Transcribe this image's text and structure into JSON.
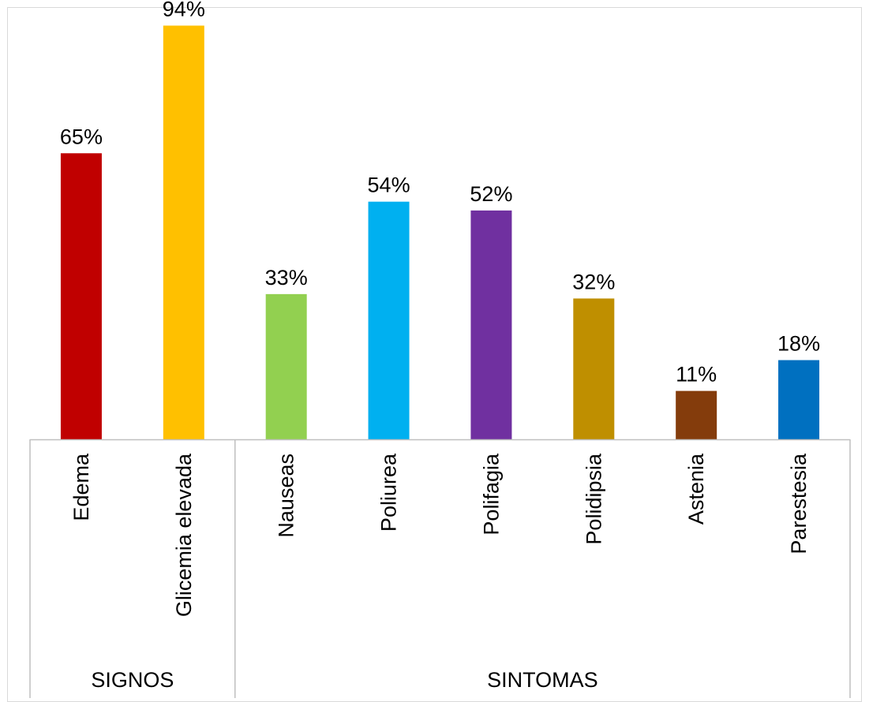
{
  "chart_data": {
    "type": "bar",
    "groups": [
      {
        "name": "SIGNOS",
        "categories": [
          "Edema",
          "Glicemia elevada"
        ]
      },
      {
        "name": "SINTOMAS",
        "categories": [
          "Nauseas",
          "Poliurea",
          "Polifagia",
          "Polidipsia",
          "Astenia",
          "Parestesia"
        ]
      }
    ],
    "categories": [
      "Edema",
      "Glicemia elevada",
      "Nauseas",
      "Poliurea",
      "Polifagia",
      "Polidipsia",
      "Astenia",
      "Parestesia"
    ],
    "values": [
      65,
      94,
      33,
      54,
      52,
      32,
      11,
      18
    ],
    "value_labels": [
      "65%",
      "94%",
      "33%",
      "54%",
      "52%",
      "32%",
      "11%",
      "18%"
    ],
    "colors": [
      "#c00000",
      "#ffc000",
      "#92d050",
      "#00b0f0",
      "#7030a0",
      "#bf8f00",
      "#843c0c",
      "#0070c0"
    ],
    "ylim": [
      0,
      100
    ],
    "unit": "%",
    "grid": false,
    "legend": "none",
    "frame_color": "#d9d9d9",
    "axis_color": "#bfbfbf",
    "text_color": "#000000"
  }
}
